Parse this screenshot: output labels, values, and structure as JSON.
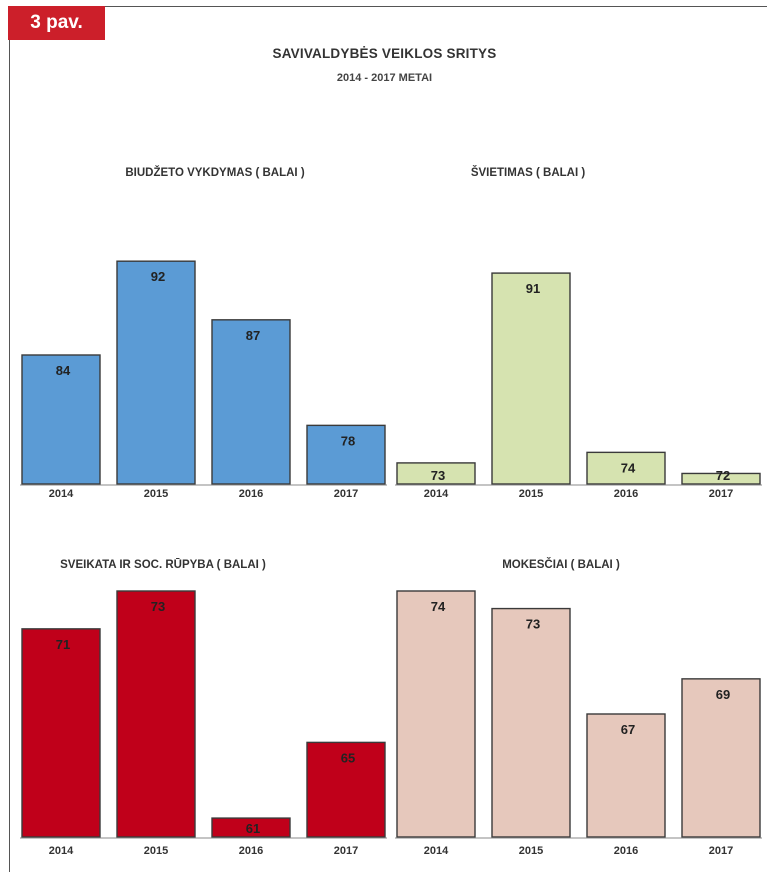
{
  "figure_label": "3 pav.",
  "title": "SAVIVALDYBĖS VEIKLOS SRITYS",
  "subtitle": "2014  - 2017 METAI",
  "chart_data": [
    {
      "type": "bar",
      "title": "BIUDŽETO VYKDYMAS ( BALAI )",
      "categories": [
        "2014",
        "2015",
        "2016",
        "2017"
      ],
      "values": [
        84,
        92,
        87,
        78
      ],
      "color": "#5b9bd5",
      "ylim": [
        73,
        95
      ]
    },
    {
      "type": "bar",
      "title": "ŠVIETIMAS ( BALAI )",
      "categories": [
        "2014",
        "2015",
        "2016",
        "2017"
      ],
      "values": [
        73,
        91,
        74,
        72
      ],
      "color": "#d6e3b0",
      "ylim": [
        71,
        93
      ]
    },
    {
      "type": "bar",
      "title": "SVEIKATA IR SOC. RŪPYBA ( BALAI )",
      "categories": [
        "2014",
        "2015",
        "2016",
        "2017"
      ],
      "values": [
        71,
        73,
        61,
        65
      ],
      "color": "#c0001a",
      "ylim": [
        60,
        73
      ]
    },
    {
      "type": "bar",
      "title": "MOKESČIAI ( BALAI )",
      "categories": [
        "2014",
        "2015",
        "2016",
        "2017"
      ],
      "values": [
        74,
        73,
        67,
        69
      ],
      "color": "#e6c8bc",
      "ylim": [
        60,
        74
      ]
    }
  ]
}
